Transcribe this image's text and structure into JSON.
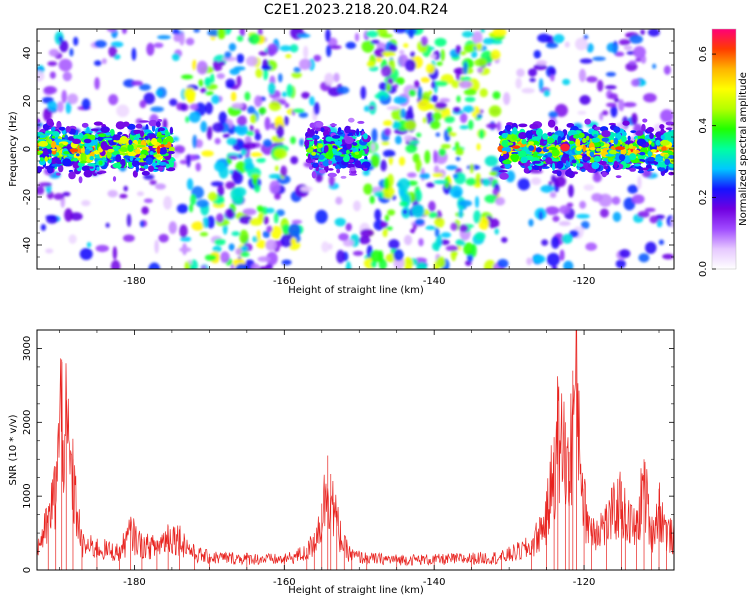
{
  "figure": {
    "title": "C2E1.2023.218.20.04.R24"
  },
  "chart_data": [
    {
      "type": "heatmap",
      "title": "C2E1.2023.218.20.04.R24",
      "xlabel": "Height of straight line (km)",
      "ylabel": "Frequency (Hz)",
      "xlim": [
        -193,
        -108
      ],
      "ylim": [
        -50,
        50
      ],
      "xticks": [
        -180,
        -160,
        -140,
        -120
      ],
      "xtick_labels": [
        "-180",
        "-160",
        "-140",
        "-120"
      ],
      "yticks": [
        -40,
        -20,
        0,
        20,
        40
      ],
      "ytick_labels": [
        "-40",
        "-20",
        "0",
        "20",
        "40"
      ],
      "colorbar": {
        "label": "Normalized spectral amplitude",
        "range": [
          0,
          0.67
        ],
        "ticks": [
          0.0,
          0.2,
          0.4,
          0.6
        ],
        "tick_labels": [
          "0.0",
          "0.2",
          "0.4",
          "0.6"
        ],
        "colormap": [
          "#ffffff",
          "#e6c8ff",
          "#a04bff",
          "#7000e0",
          "#1414ff",
          "#00c8ff",
          "#00ffa0",
          "#20ff00",
          "#b4ff00",
          "#ffff00",
          "#ffb400",
          "#ff3c00",
          "#ff0078"
        ]
      },
      "bands": [
        {
          "x_range": [
            -193,
            -175
          ],
          "center_hz": 0,
          "peak_amplitude": 0.62
        },
        {
          "x_range": [
            -157,
            -149
          ],
          "center_hz": 0,
          "peak_amplitude": 0.45
        },
        {
          "x_range": [
            -131,
            -108
          ],
          "center_hz": 0,
          "peak_amplitude": 0.62
        }
      ],
      "grid": false
    },
    {
      "type": "line",
      "xlabel": "Height of straight line (km)",
      "ylabel": "SNR (10 * v/v)",
      "xlim": [
        -193,
        -108
      ],
      "ylim": [
        0,
        3250
      ],
      "xticks": [
        -180,
        -160,
        -140,
        -120
      ],
      "xtick_labels": [
        "-180",
        "-160",
        "-140",
        "-120"
      ],
      "yticks": [
        0,
        1000,
        2000,
        3000
      ],
      "ytick_labels": [
        "0",
        "1000",
        "2000",
        "3000"
      ],
      "line_color": "#e8231f",
      "series": [
        {
          "x": [
            -193,
            -191.5,
            -190.5,
            -189.7,
            -189.1,
            -188.2,
            -187,
            -185,
            -182,
            -180.5,
            -179,
            -177,
            -175.5,
            -174,
            -172,
            -170,
            -165,
            -160,
            -157,
            -156,
            -155,
            -154.2,
            -153.8,
            -153,
            -152,
            -151,
            -149,
            -145,
            -140,
            -135,
            -131,
            -127,
            -125,
            -124,
            -123.5,
            -122.5,
            -122,
            -121.5,
            -121,
            -120,
            -119,
            -117,
            -115,
            -114.5,
            -113,
            -112,
            -111,
            -110,
            -109,
            -108
          ],
          "y": [
            400,
            800,
            1400,
            2850,
            2300,
            1500,
            420,
            380,
            300,
            650,
            420,
            400,
            600,
            550,
            280,
            220,
            200,
            180,
            300,
            500,
            900,
            1550,
            1300,
            800,
            400,
            250,
            200,
            180,
            180,
            200,
            220,
            400,
            900,
            1800,
            2300,
            2000,
            1600,
            2700,
            3250,
            1100,
            700,
            800,
            1200,
            900,
            700,
            1500,
            600,
            1100,
            650,
            550
          ]
        }
      ],
      "grid": false
    }
  ]
}
